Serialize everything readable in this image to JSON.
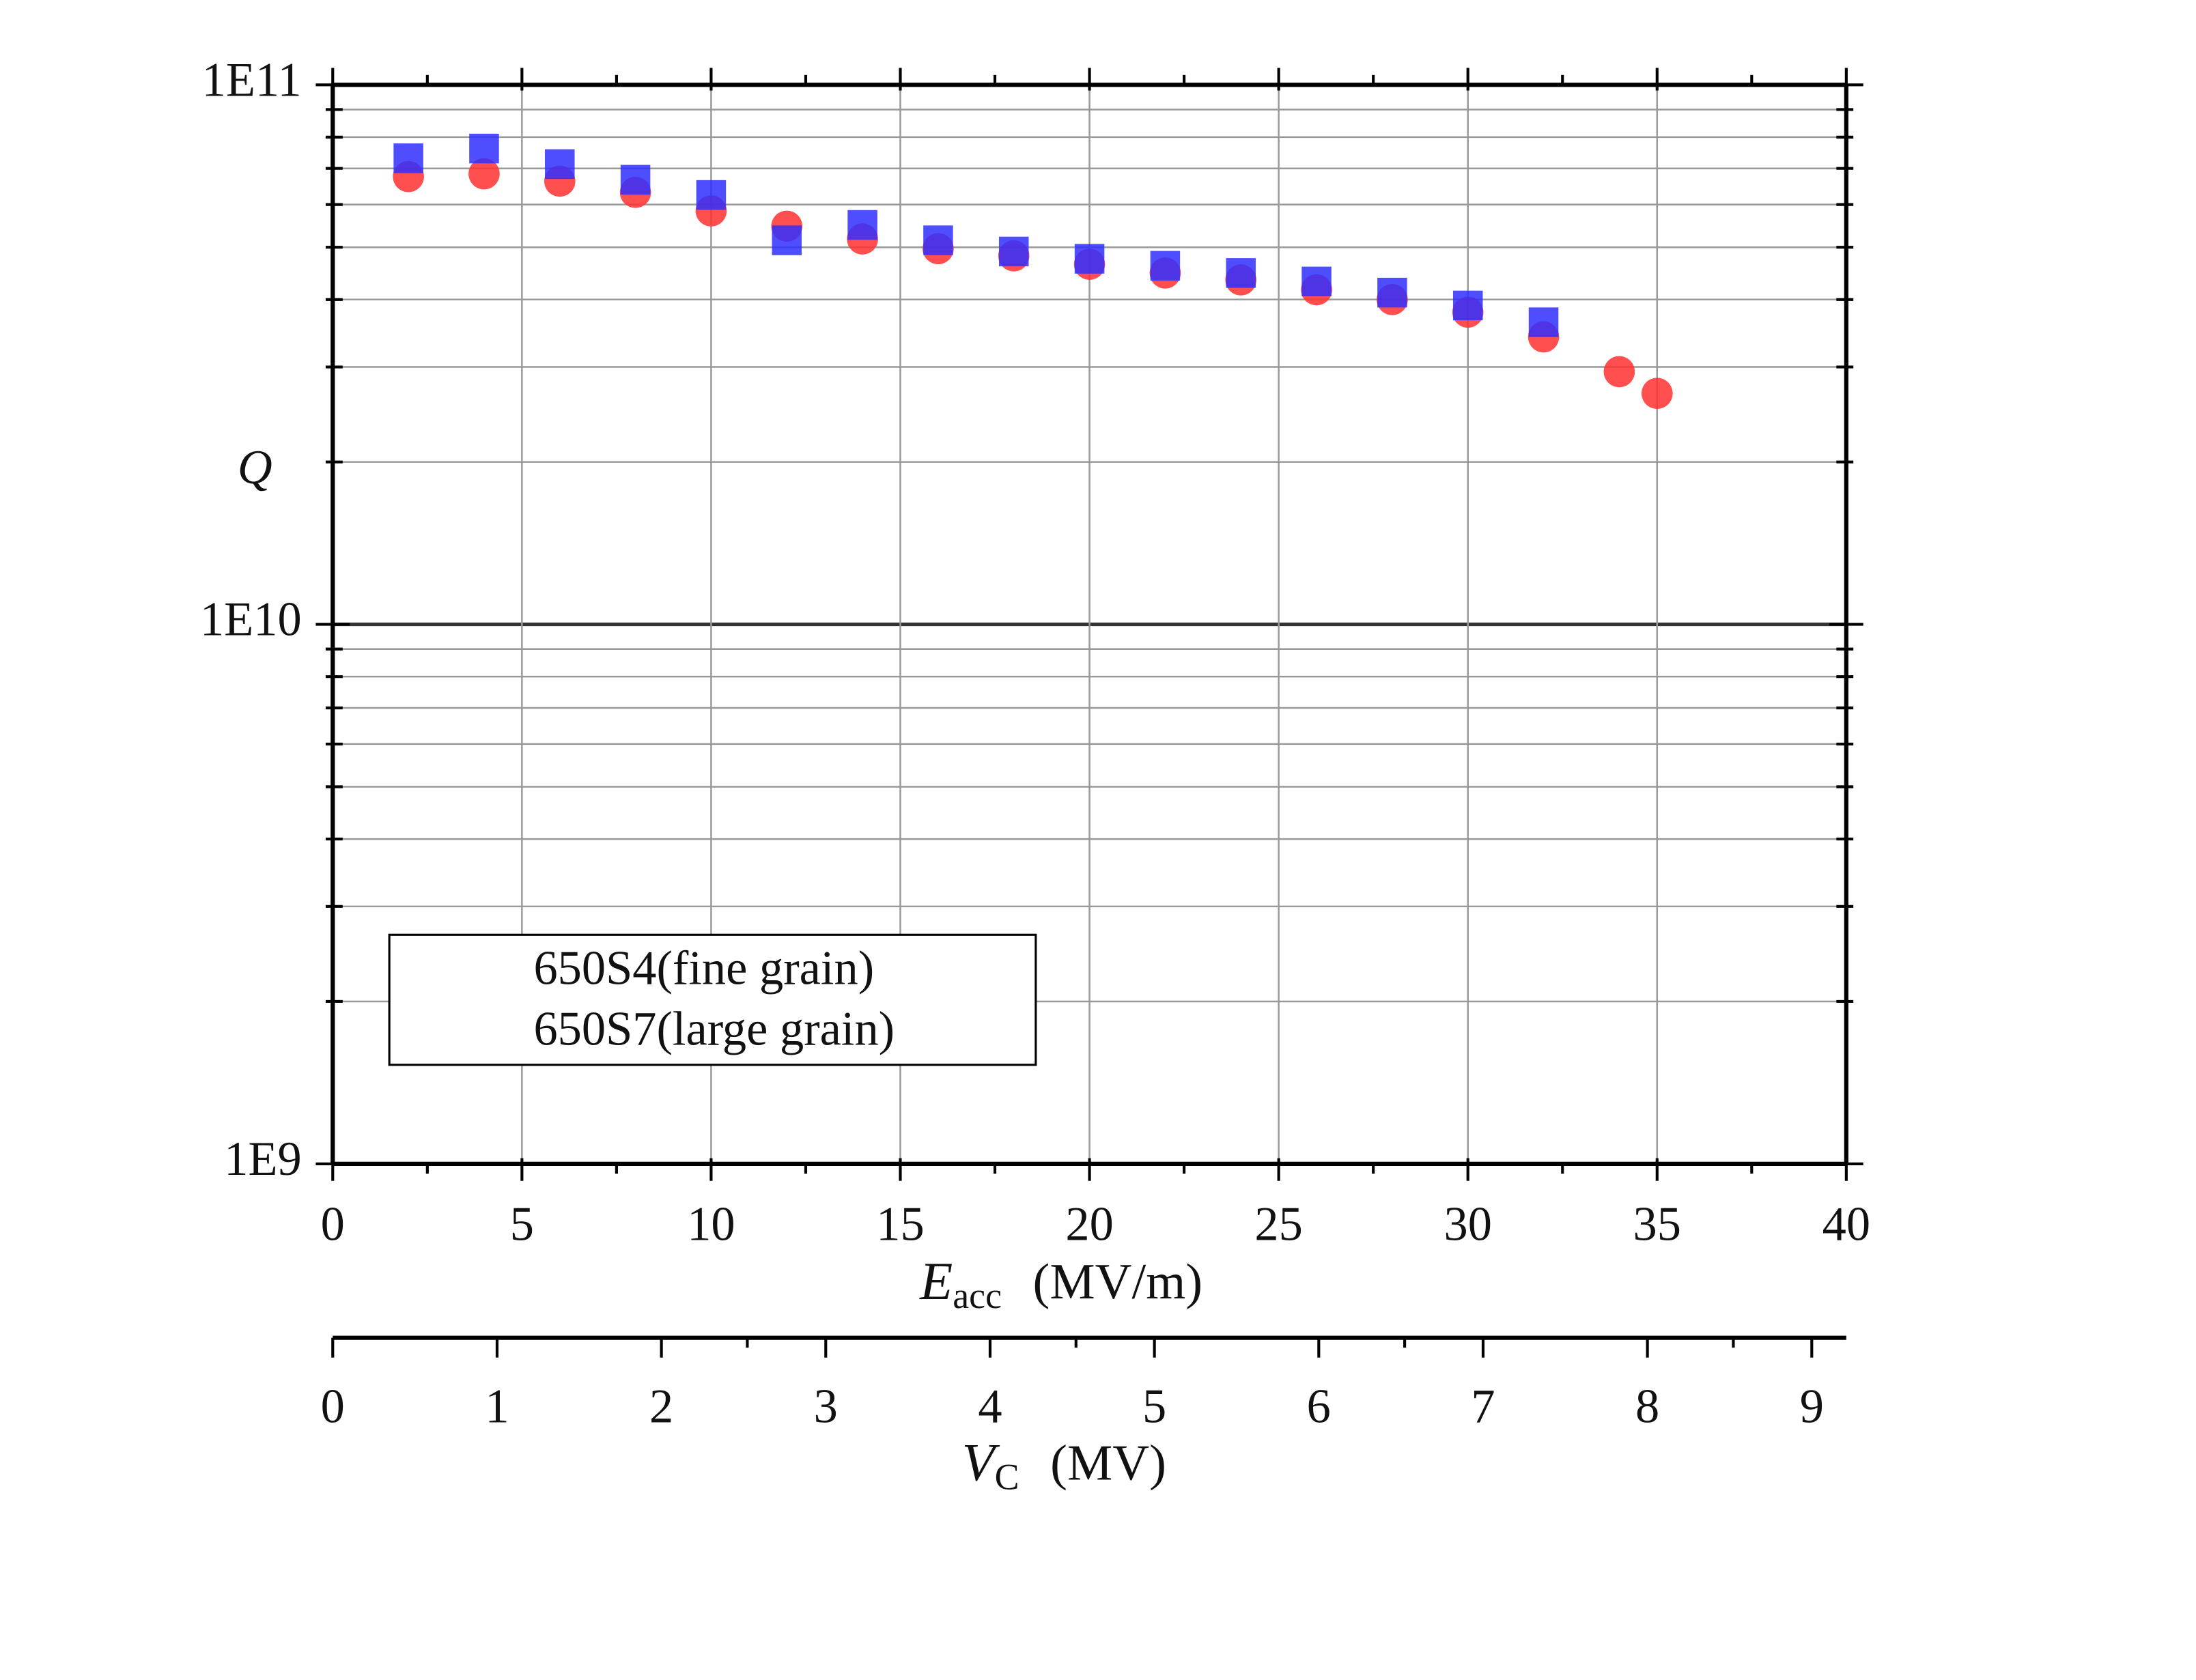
{
  "chart_data": {
    "type": "scatter",
    "ylabel": "Q",
    "xlabel": {
      "symbol": "E",
      "subscript": "acc",
      "unit": "(MV/m)"
    },
    "x2label": {
      "symbol": "V",
      "subscript": "C",
      "unit": "(MV)"
    },
    "log_y": true,
    "grid": true,
    "xlim": [
      0,
      40
    ],
    "xticks": [
      0,
      5,
      10,
      15,
      20,
      25,
      30,
      35,
      40
    ],
    "x2lim": [
      0,
      9.21
    ],
    "x2ticks": [
      0,
      1,
      2,
      3,
      4,
      5,
      6,
      7,
      8,
      9
    ],
    "ylim": [
      1000000000,
      100000000000
    ],
    "yticks": [
      {
        "value": 1000000000,
        "label": "1E9"
      },
      {
        "value": 10000000000,
        "label": "1E10"
      },
      {
        "value": 100000000000,
        "label": "1E11"
      }
    ],
    "minor_yticks": [
      2000000000,
      3000000000,
      4000000000,
      5000000000,
      6000000000,
      7000000000,
      8000000000,
      9000000000,
      20000000000,
      30000000000,
      40000000000,
      50000000000,
      60000000000,
      70000000000,
      80000000000,
      90000000000
    ],
    "series": [
      {
        "name": "650S4(fine grain)",
        "marker": "circle",
        "color": "#ff3030",
        "x": [
          2,
          4,
          6,
          8,
          10,
          12,
          14,
          16,
          18,
          20,
          22,
          24,
          26,
          28,
          30,
          32,
          34,
          35
        ],
        "values": [
          67600000000,
          68400000000,
          66300000000,
          63200000000,
          58400000000,
          54700000000,
          51800000000,
          49700000000,
          48200000000,
          46500000000,
          44800000000,
          43500000000,
          41700000000,
          40000000000,
          37900000000,
          34100000000,
          29400000000,
          26800000000
        ]
      },
      {
        "name": "650S7(large grain)",
        "marker": "square",
        "color": "#2f2fff",
        "x": [
          2,
          4,
          6,
          8,
          10,
          12,
          14,
          16,
          18,
          20,
          22,
          24,
          26,
          28,
          30,
          32
        ],
        "values": [
          73100000000,
          76200000000,
          71300000000,
          66700000000,
          62500000000,
          51500000000,
          55000000000,
          51500000000,
          49100000000,
          47600000000,
          46200000000,
          44800000000,
          43200000000,
          41200000000,
          39000000000,
          36300000000
        ]
      }
    ]
  }
}
